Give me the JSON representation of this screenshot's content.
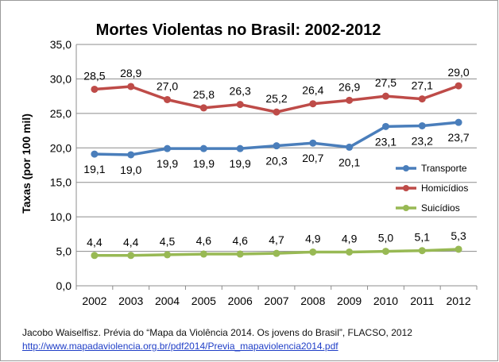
{
  "chart_data": {
    "type": "line",
    "title": "Mortes Violentas no Brasil: 2002-2012",
    "ylabel": "Taxas (por 100 mil)",
    "xlabel": "",
    "ylim": [
      0,
      35
    ],
    "yticks": [
      "0,0",
      "5,0",
      "10,0",
      "15,0",
      "20,0",
      "25,0",
      "30,0",
      "35,0"
    ],
    "categories": [
      "2002",
      "2003",
      "2004",
      "2005",
      "2006",
      "2007",
      "2008",
      "2009",
      "2010",
      "2011",
      "2012"
    ],
    "grid": true,
    "legend_position": "right",
    "series": [
      {
        "name": "Transporte",
        "color": "#4a7ebb",
        "values": [
          19.1,
          19.0,
          19.9,
          19.9,
          19.9,
          20.3,
          20.7,
          20.1,
          23.1,
          23.2,
          23.7
        ],
        "labels": [
          "19,1",
          "19,0",
          "19,9",
          "19,9",
          "19,9",
          "20,3",
          "20,7",
          "20,1",
          "23,1",
          "23,2",
          "23,7"
        ],
        "label_position": "below"
      },
      {
        "name": "Homicídios",
        "color": "#be4b48",
        "values": [
          28.5,
          28.9,
          27.0,
          25.8,
          26.3,
          25.2,
          26.4,
          26.9,
          27.5,
          27.1,
          29.0
        ],
        "labels": [
          "28,5",
          "28,9",
          "27,0",
          "25,8",
          "26,3",
          "25,2",
          "26,4",
          "26,9",
          "27,5",
          "27,1",
          "29,0"
        ],
        "label_position": "above"
      },
      {
        "name": "Suicídios",
        "color": "#98b954",
        "values": [
          4.4,
          4.4,
          4.5,
          4.6,
          4.6,
          4.7,
          4.9,
          4.9,
          5.0,
          5.1,
          5.3
        ],
        "labels": [
          "4,4",
          "4,4",
          "4,5",
          "4,6",
          "4,6",
          "4,7",
          "4,9",
          "4,9",
          "5,0",
          "5,1",
          "5,3"
        ],
        "label_position": "above"
      }
    ]
  },
  "source": {
    "text": "Jacobo Waiselfisz. Prévia do “Mapa da Violência 2014. Os jovens do Brasil”, FLACSO, 2012",
    "link": "http://www.mapadaviolencia.org.br/pdf2014/Previa_mapaviolencia2014.pdf"
  }
}
